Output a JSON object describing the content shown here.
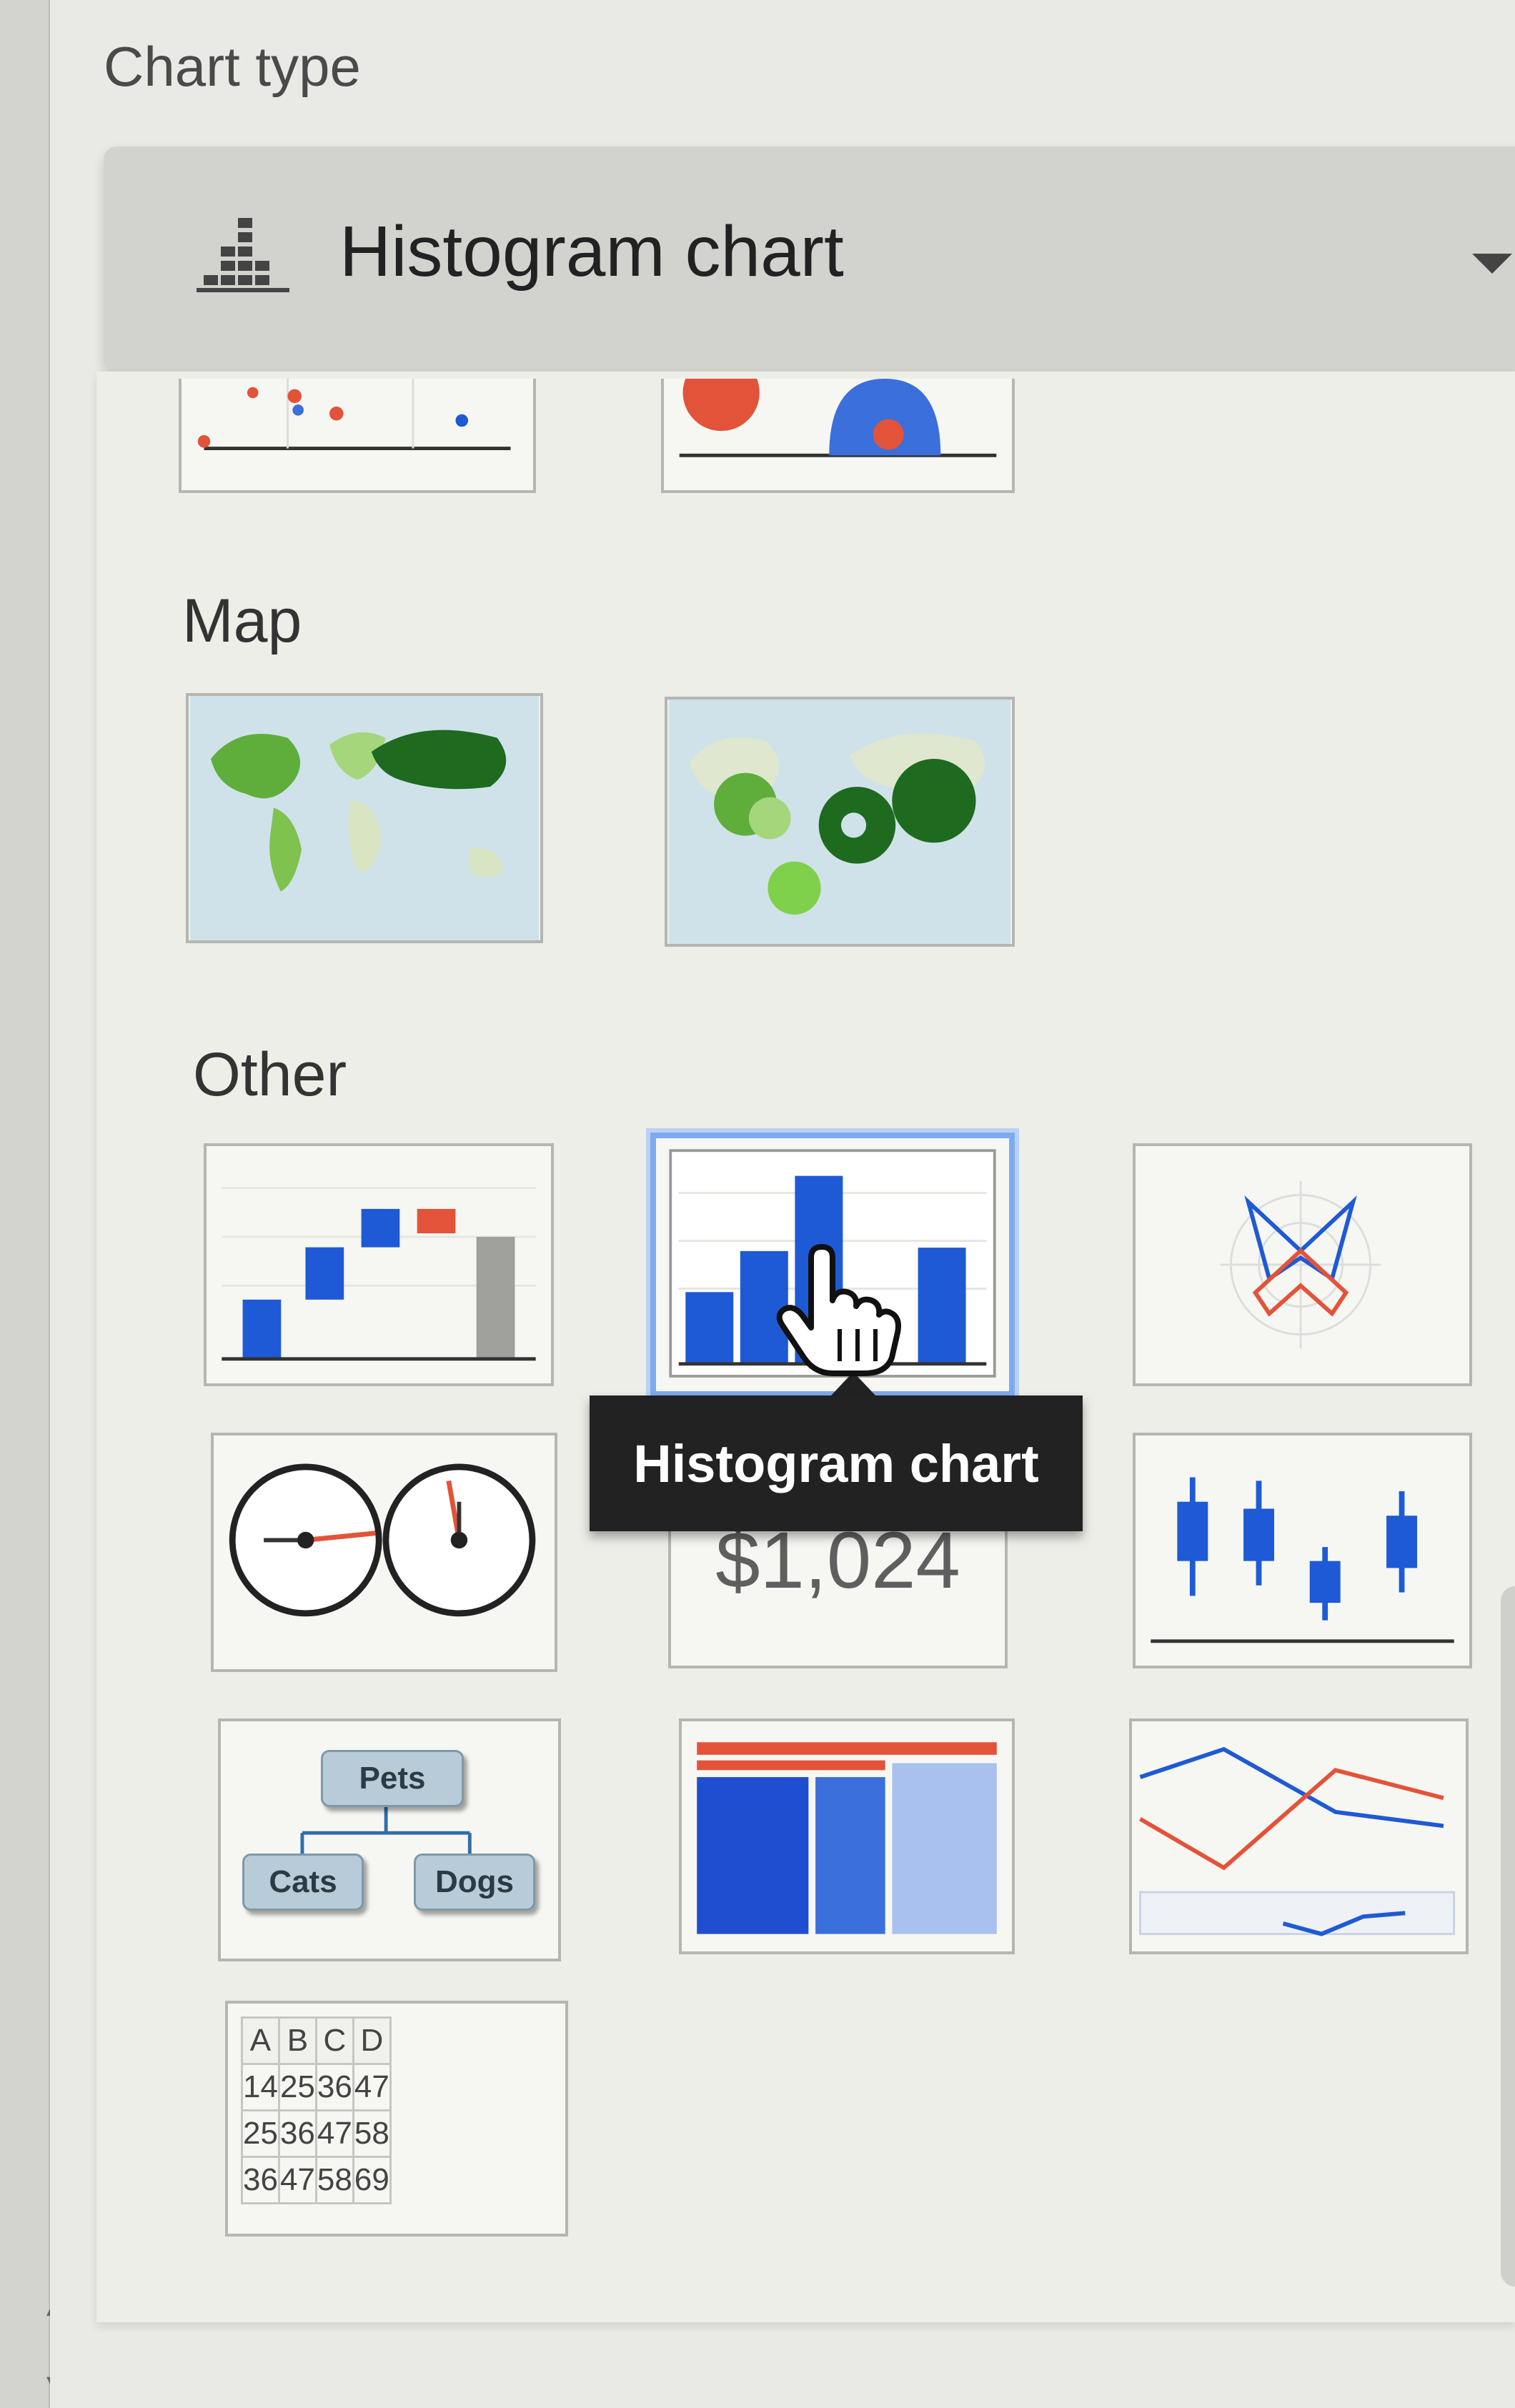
{
  "panel": {
    "title": "Chart type",
    "dropdown": {
      "selected": "Histogram chart",
      "icon": "histogram-icon"
    }
  },
  "sections": {
    "map": "Map",
    "other": "Other"
  },
  "tooltip": "Histogram chart",
  "scorecard": {
    "value": "$1,024"
  },
  "org_chart": {
    "root": "Pets",
    "children": [
      "Cats",
      "Dogs"
    ]
  },
  "table_chart": {
    "headers": [
      "A",
      "B",
      "C",
      "D"
    ],
    "rows": [
      [
        "14",
        "25",
        "36",
        "47"
      ],
      [
        "25",
        "36",
        "47",
        "58"
      ],
      [
        "36",
        "47",
        "58",
        "69"
      ]
    ]
  },
  "colors": {
    "blue": "#1f5ad6",
    "red": "#e3533a",
    "green_dark": "#1e6b1f",
    "green_light": "#8fcf5a",
    "selected_border": "#7eaaf0"
  }
}
